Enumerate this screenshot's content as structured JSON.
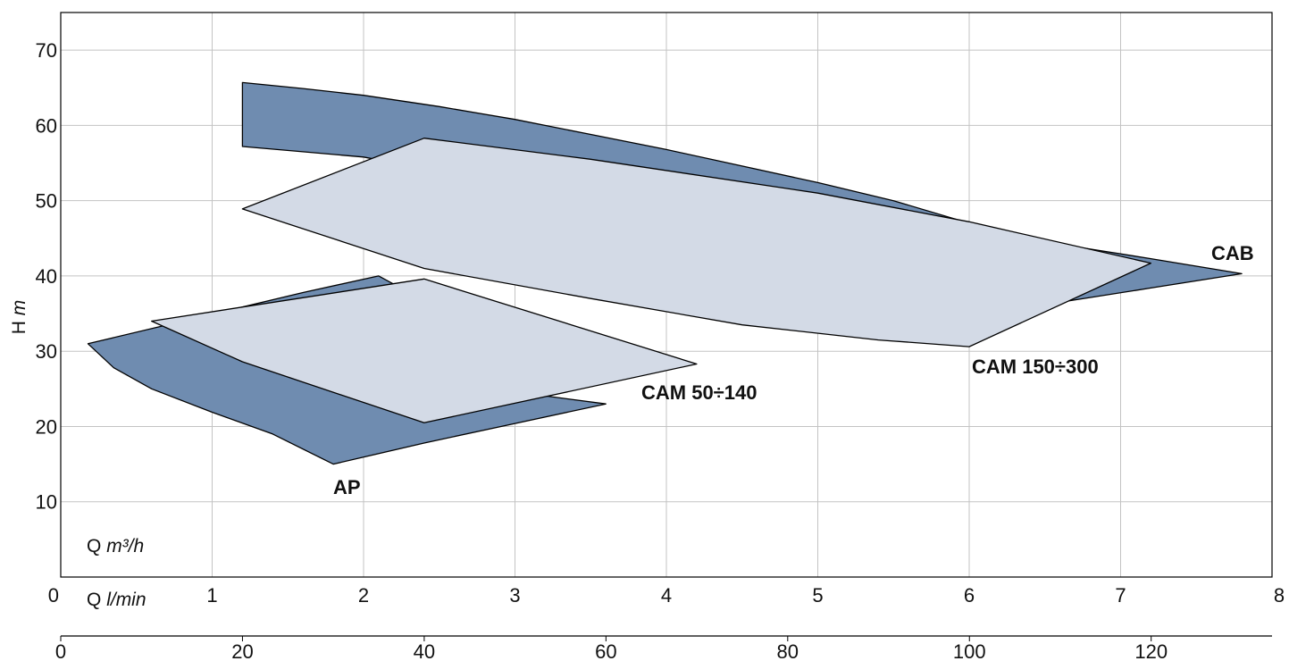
{
  "chart_data": {
    "type": "area",
    "title": "",
    "ylabel": {
      "main": "H",
      "unit": "m"
    },
    "xlabel_primary": {
      "main": "Q",
      "unit": "m³/h"
    },
    "xlabel_secondary": {
      "main": "Q",
      "unit": "l/min"
    },
    "x_primary": {
      "min": 0,
      "max": 8,
      "ticks": [
        "0",
        "1",
        "2",
        "3",
        "4",
        "5",
        "6",
        "7",
        "8"
      ]
    },
    "x_secondary": {
      "min": 0,
      "max": 133.3,
      "ticks": [
        "0",
        "20",
        "40",
        "60",
        "80",
        "100",
        "120"
      ]
    },
    "y": {
      "min": 0,
      "max": 75,
      "ticks": [
        "10",
        "20",
        "30",
        "40",
        "50",
        "60",
        "70"
      ]
    },
    "grid": true,
    "colors": {
      "dark_fill": "#6f8cb0",
      "light_fill": "#d3dae6",
      "outline": "#000000",
      "grid": "#c3c3c3"
    },
    "series": [
      {
        "name": "CAB",
        "style": "dark",
        "points_x": [
          1.2,
          1.6,
          2.0,
          2.5,
          3.0,
          3.5,
          4.0,
          4.5,
          5.0,
          5.5,
          6.0,
          6.6,
          7.2,
          7.8,
          7.2,
          6.6,
          6.0,
          5.0,
          4.0,
          3.0,
          2.0,
          1.2
        ],
        "points_y": [
          65.7,
          64.9,
          64.0,
          62.5,
          60.8,
          58.8,
          56.8,
          54.6,
          52.4,
          50.0,
          47.0,
          44.2,
          42.3,
          40.3,
          38.4,
          36.5,
          38.4,
          45.0,
          48.5,
          52.0,
          55.8,
          57.2
        ],
        "label": "CAB"
      },
      {
        "name": "CAM 150÷300",
        "style": "light",
        "points_x": [
          1.2,
          2.4,
          3.5,
          5.0,
          6.0,
          7.2,
          6.0,
          5.4,
          4.5,
          3.5,
          2.4
        ],
        "points_y": [
          48.9,
          58.3,
          55.5,
          51.0,
          47.2,
          41.7,
          30.6,
          31.5,
          33.5,
          37.0,
          41.0
        ],
        "label": "CAM 150÷300"
      },
      {
        "name": "AP",
        "style": "dark",
        "points_x": [
          0.18,
          0.35,
          0.6,
          1.0,
          1.4,
          1.8,
          2.4,
          3.0,
          3.6,
          2.7,
          2.2,
          2.1,
          1.6
        ],
        "points_y": [
          31.0,
          27.8,
          25.0,
          21.9,
          19.0,
          15.0,
          17.8,
          20.4,
          23.0,
          25.4,
          38.9,
          40.0,
          37.8
        ],
        "label": "AP"
      },
      {
        "name": "CAM 50÷140",
        "style": "light",
        "points_x": [
          0.6,
          2.4,
          4.2,
          2.4,
          1.2
        ],
        "points_y": [
          34.0,
          39.6,
          28.3,
          20.5,
          28.6
        ],
        "label": "CAM 50÷140"
      }
    ]
  }
}
